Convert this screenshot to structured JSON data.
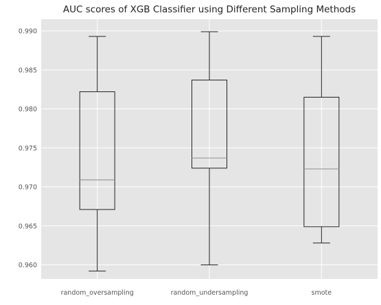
{
  "chart_data": {
    "type": "boxplot",
    "title": "AUC scores of XGB Classifier using Different Sampling Methods",
    "xlabel": "",
    "ylabel": "",
    "ylim": [
      0.9582,
      0.9915
    ],
    "yticks": [
      "0.960",
      "0.965",
      "0.970",
      "0.975",
      "0.980",
      "0.985",
      "0.990"
    ],
    "grid": true,
    "categories": [
      "random_oversampling",
      "random_undersampling",
      "smote"
    ],
    "boxes": [
      {
        "whisker_low": 0.9592,
        "q1": 0.9671,
        "median": 0.9709,
        "q3": 0.9822,
        "whisker_high": 0.9893
      },
      {
        "whisker_low": 0.96,
        "q1": 0.9724,
        "median": 0.9737,
        "q3": 0.9837,
        "whisker_high": 0.9899
      },
      {
        "whisker_low": 0.9628,
        "q1": 0.9649,
        "median": 0.9723,
        "q3": 0.9815,
        "whisker_high": 0.9893
      }
    ],
    "colors": {
      "background": "#e5e5e5",
      "grid": "#ffffff",
      "box": "#222222",
      "median": "#999999"
    }
  }
}
